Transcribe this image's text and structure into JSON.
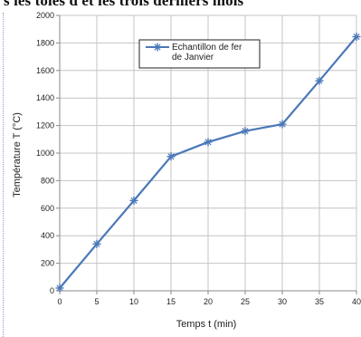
{
  "page": {
    "top_text": "s les tôles d et les trois derniers mois"
  },
  "chart_data": {
    "type": "line",
    "title": "",
    "xlabel": "Temps t (min)",
    "ylabel": "Température T (°C)",
    "x": [
      0,
      5,
      10,
      15,
      20,
      25,
      30,
      35,
      40
    ],
    "series": [
      {
        "name": "Echantillon de fer de Janvier",
        "name_lines": [
          "Echantillon de fer",
          "de  Janvier"
        ],
        "values": [
          20,
          340,
          655,
          975,
          1080,
          1160,
          1210,
          1525,
          1845
        ],
        "color": "#4a78b8",
        "marker": "star"
      }
    ],
    "xlim": [
      0,
      40
    ],
    "ylim": [
      0,
      2000
    ],
    "x_ticks": [
      0,
      5,
      10,
      15,
      20,
      25,
      30,
      35,
      40
    ],
    "y_ticks": [
      0,
      200,
      400,
      600,
      800,
      1000,
      1200,
      1400,
      1600,
      1800,
      2000
    ],
    "grid": true,
    "legend_position": "top-center"
  }
}
